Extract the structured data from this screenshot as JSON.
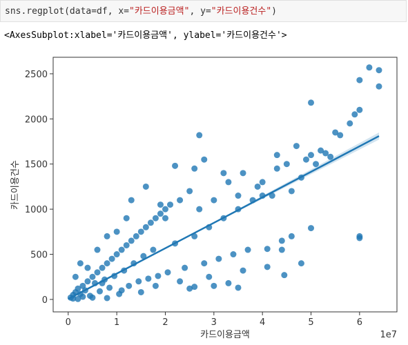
{
  "code_cell": {
    "tokens": [
      {
        "text": "sns.regplot(data=df, x=",
        "color": "#333333"
      },
      {
        "text": "\"카드이용금액\"",
        "color": "#ba2121"
      },
      {
        "text": ", y=",
        "color": "#333333"
      },
      {
        "text": "\"카드이용건수\"",
        "color": "#ba2121"
      },
      {
        "text": ")",
        "color": "#333333"
      }
    ]
  },
  "output_text": "<AxesSubplot:xlabel='카드이용금액', ylabel='카드이용건수'>",
  "chart_data": {
    "type": "scatter",
    "xlabel": "카드이용금액",
    "ylabel": "카드이용건수",
    "x_offset_label": "1e7",
    "color": "#1f77b4",
    "xlim": [
      -0.31,
      6.77
    ],
    "ylim": [
      -138,
      2683
    ],
    "xticks": [
      0,
      1,
      2,
      3,
      4,
      5,
      6
    ],
    "yticks": [
      0,
      500,
      1000,
      1500,
      2000,
      2500
    ],
    "x": [
      0.05,
      0.1,
      0.15,
      0.2,
      0.25,
      0.3,
      0.35,
      0.4,
      0.45,
      0.5,
      0.55,
      0.6,
      0.65,
      0.7,
      0.75,
      0.8,
      0.85,
      0.9,
      0.95,
      1.0,
      1.05,
      1.1,
      1.15,
      1.2,
      1.25,
      1.3,
      1.35,
      1.4,
      1.45,
      1.5,
      1.55,
      1.6,
      1.65,
      1.7,
      1.75,
      1.8,
      1.85,
      1.9,
      2.0,
      2.05,
      2.1,
      2.2,
      2.3,
      2.4,
      2.5,
      2.6,
      2.7,
      2.8,
      2.9,
      3.0,
      3.1,
      3.2,
      3.3,
      3.4,
      3.5,
      3.6,
      3.7,
      3.8,
      3.9,
      4.0,
      4.1,
      4.2,
      4.3,
      4.4,
      4.5,
      4.6,
      4.7,
      4.8,
      4.9,
      5.0,
      5.0,
      5.0,
      5.1,
      5.2,
      5.3,
      5.4,
      5.5,
      5.6,
      5.8,
      5.9,
      6.0,
      6.0,
      6.0,
      6.0,
      6.2,
      6.4,
      6.4,
      4.45,
      3.5,
      4.6,
      4.4,
      0.1,
      0.2,
      0.3,
      0.5,
      0.8,
      1.5,
      2.5,
      3.0,
      2.0,
      1.9,
      1.2,
      1.0,
      0.8,
      0.6,
      2.6,
      2.7,
      2.8,
      3.2,
      3.5,
      2.2,
      0.4,
      1.3,
      1.6,
      4.0,
      4.3,
      0.15,
      0.25,
      0.7,
      1.1,
      1.8,
      2.3,
      2.9,
      3.6,
      4.1,
      4.8,
      3.3,
      2.6
    ],
    "y": [
      20,
      50,
      80,
      120,
      60,
      150,
      100,
      200,
      40,
      250,
      180,
      300,
      90,
      350,
      220,
      400,
      130,
      450,
      260,
      500,
      60,
      550,
      320,
      600,
      150,
      650,
      400,
      700,
      200,
      750,
      480,
      800,
      230,
      850,
      550,
      900,
      260,
      950,
      1000,
      300,
      1050,
      620,
      1100,
      350,
      1200,
      700,
      1000,
      400,
      800,
      1100,
      450,
      900,
      1300,
      500,
      1000,
      1400,
      550,
      1100,
      1250,
      1300,
      560,
      1150,
      1450,
      650,
      1500,
      1200,
      1700,
      1350,
      1550,
      1600,
      2180,
      790,
      1500,
      1650,
      1620,
      1580,
      1850,
      1820,
      1950,
      2050,
      2100,
      2430,
      700,
      680,
      2570,
      2540,
      2360,
      270,
      130,
      700,
      550,
      10,
      5,
      30,
      20,
      15,
      80,
      120,
      150,
      900,
      1050,
      900,
      750,
      700,
      550,
      1450,
      1820,
      1550,
      1400,
      1150,
      1480,
      350,
      1100,
      1250,
      1150,
      1600,
      250,
      400,
      180,
      100,
      150,
      200,
      250,
      320,
      360,
      400,
      180,
      140
    ],
    "regression": {
      "x": [
        0,
        3.2,
        6.4
      ],
      "y": [
        5,
        905,
        1810
      ],
      "lower": [
        0,
        895,
        1770
      ],
      "upper": [
        10,
        915,
        1850
      ]
    }
  }
}
